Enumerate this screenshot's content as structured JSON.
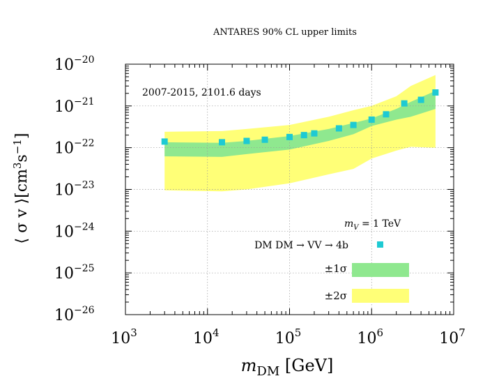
{
  "chart_data": {
    "type": "scatter",
    "title": "ANTARES 90% CL upper limits",
    "annotation": "2007-2015, 2101.6 days",
    "xlabel": {
      "main": "m",
      "sub": "DM",
      "unit": " [GeV]"
    },
    "ylabel": {
      "main": "⟨ σ v ⟩[cm",
      "sup1": "3",
      "mid": "s",
      "sup2": "−1",
      "end": "]"
    },
    "xscale": "log",
    "yscale": "log",
    "xlim": [
      1000,
      10000000
    ],
    "ylim": [
      1e-26,
      1e-20
    ],
    "grid": true,
    "x_ticks": [
      {
        "value": 1000,
        "base": "10",
        "exp": "3"
      },
      {
        "value": 10000,
        "base": "10",
        "exp": "4"
      },
      {
        "value": 100000,
        "base": "10",
        "exp": "5"
      },
      {
        "value": 1000000,
        "base": "10",
        "exp": "6"
      },
      {
        "value": 10000000,
        "base": "10",
        "exp": "7"
      }
    ],
    "y_ticks": [
      {
        "value": 1e-20,
        "base": "10",
        "exp": "−20"
      },
      {
        "value": 1e-21,
        "base": "10",
        "exp": "−21"
      },
      {
        "value": 1e-22,
        "base": "10",
        "exp": "−22"
      },
      {
        "value": 1e-23,
        "base": "10",
        "exp": "−23"
      },
      {
        "value": 1e-24,
        "base": "10",
        "exp": "−24"
      },
      {
        "value": 1e-25,
        "base": "10",
        "exp": "−25"
      },
      {
        "value": 1e-26,
        "base": "10",
        "exp": "−26"
      }
    ],
    "legend": {
      "placement": "bottom-right",
      "header": "m_V = 1 TeV",
      "header_main": "m",
      "header_sub": "V",
      "header_rest": " = 1 TeV",
      "entries": [
        {
          "label": "DM DM → VV → 4b",
          "kind": "marker",
          "color": "#1ecad3"
        },
        {
          "label": "±1σ",
          "kind": "band",
          "color": "#8fe88f"
        },
        {
          "label": "±2σ",
          "kind": "band",
          "color": "#ffff77"
        }
      ]
    },
    "series": [
      {
        "name": "DM DM → VV → 4b",
        "kind": "marker",
        "color": "#1ecad3",
        "points": [
          [
            3000,
            1.4e-22
          ],
          [
            15000,
            1.35e-22
          ],
          [
            30000,
            1.45e-22
          ],
          [
            50000,
            1.55e-22
          ],
          [
            100000,
            1.8e-22
          ],
          [
            150000,
            2e-22
          ],
          [
            200000,
            2.2e-22
          ],
          [
            400000,
            2.9e-22
          ],
          [
            600000,
            3.5e-22
          ],
          [
            1000000,
            4.7e-22
          ],
          [
            1500000,
            6.3e-22
          ],
          [
            2500000,
            1.15e-21
          ],
          [
            4000000,
            1.4e-21
          ],
          [
            6000000,
            2.1e-21
          ]
        ]
      }
    ],
    "bands": [
      {
        "name": "±2σ",
        "color": "#ffff77",
        "x": [
          3000,
          15000,
          30000,
          100000,
          300000,
          600000,
          1000000,
          2000000,
          3000000,
          6000000
        ],
        "lower": [
          9.5e-24,
          9e-24,
          1e-23,
          1.4e-23,
          2.3e-23,
          3.1e-23,
          5.5e-23,
          8.5e-23,
          1.05e-22,
          1e-22
        ],
        "upper": [
          2.4e-22,
          2.5e-22,
          2.8e-22,
          3.5e-22,
          5.5e-22,
          7.9e-22,
          1e-21,
          1.7e-21,
          3e-21,
          5.5e-21
        ]
      },
      {
        "name": "±1σ",
        "color": "#8fe88f",
        "x": [
          3000,
          15000,
          30000,
          100000,
          300000,
          600000,
          1000000,
          2000000,
          3000000,
          6000000
        ],
        "lower": [
          6.2e-23,
          6e-23,
          7e-23,
          9e-23,
          1.45e-22,
          2.1e-22,
          3.3e-22,
          4.7e-22,
          5.5e-22,
          8.5e-22
        ],
        "upper": [
          1.35e-22,
          1.3e-22,
          1.45e-22,
          1.9e-22,
          2.8e-22,
          3.9e-22,
          5e-22,
          8.5e-22,
          1.25e-21,
          2.3e-21
        ]
      }
    ]
  }
}
